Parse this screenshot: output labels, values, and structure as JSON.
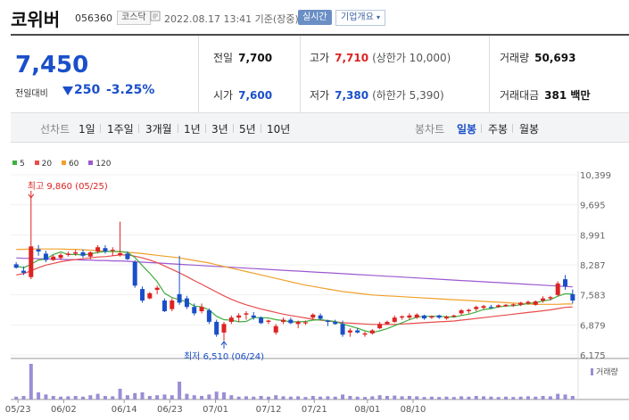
{
  "header": {
    "name": "코위버",
    "code": "056360",
    "market": "코스닥",
    "timestamp": "2022.08.17 13:41 기준(장중)",
    "realtime": "실시간",
    "overview": "기업개요"
  },
  "quote": {
    "price": "7,450",
    "change_label": "전일대비",
    "change": "250",
    "change_pct": "-3.25%",
    "prev_close_label": "전일",
    "prev_close": "7,700",
    "open_label": "시가",
    "open": "7,600",
    "high_label": "고가",
    "high": "7,710",
    "upper_limit": "(상한가 10,000)",
    "low_label": "저가",
    "low": "7,380",
    "lower_limit": "(하한가 5,390)",
    "volume_label": "거래량",
    "volume": "50,693",
    "amount_label": "거래대금",
    "amount": "381 백만"
  },
  "tabs": {
    "line_label": "선차트",
    "periods": [
      "1일",
      "1주일",
      "3개월",
      "1년",
      "3년",
      "5년",
      "10년"
    ],
    "candle_label": "봉차트",
    "candle_periods": [
      "일봉",
      "주봉",
      "월봉"
    ],
    "selected_candle": "일봉"
  },
  "colors": {
    "up": "#dd2222",
    "down": "#1a4fc9",
    "ma5": "#3fae3f",
    "ma20": "#e84c4c",
    "ma60": "#f0a02a",
    "ma120": "#9b59d0",
    "volume": "#9b8dd6"
  },
  "chart_data": {
    "type": "candlestick",
    "legend": [
      "5",
      "20",
      "60",
      "120"
    ],
    "y_ticks": [
      "10,399",
      "9,695",
      "8,991",
      "8,287",
      "7,583",
      "6,879",
      "6,175"
    ],
    "ylim": [
      6175,
      10399
    ],
    "x_ticks": [
      "05/23",
      "06/02",
      "06/14",
      "06/23",
      "07/01",
      "07/12",
      "07/21",
      "08/01",
      "08/10"
    ],
    "annotations": {
      "high": "최고 9,860 (05/25)",
      "low": "최저 6,510 (06/24)"
    },
    "volume_label": "거래량",
    "candles": [
      [
        8300,
        8350,
        8200,
        8220
      ],
      [
        8150,
        8250,
        8050,
        8100
      ],
      [
        8000,
        9860,
        7950,
        8720
      ],
      [
        8650,
        8750,
        8500,
        8600
      ],
      [
        8550,
        8620,
        8350,
        8400
      ],
      [
        8400,
        8520,
        8380,
        8480
      ],
      [
        8450,
        8560,
        8400,
        8520
      ],
      [
        8520,
        8600,
        8480,
        8550
      ],
      [
        8550,
        8640,
        8500,
        8580
      ],
      [
        8580,
        8650,
        8450,
        8500
      ],
      [
        8480,
        8600,
        8420,
        8580
      ],
      [
        8600,
        8750,
        8550,
        8700
      ],
      [
        8680,
        8750,
        8550,
        8600
      ],
      [
        8620,
        8700,
        8500,
        8640
      ],
      [
        8520,
        9300,
        8480,
        8560
      ],
      [
        8550,
        8600,
        8400,
        8420
      ],
      [
        8350,
        8400,
        7750,
        7800
      ],
      [
        7720,
        7780,
        7400,
        7450
      ],
      [
        7500,
        7650,
        7480,
        7620
      ],
      [
        7700,
        7800,
        7600,
        7750
      ],
      [
        7450,
        7500,
        7180,
        7200
      ],
      [
        7250,
        7500,
        7200,
        7450
      ],
      [
        7600,
        8500,
        7350,
        7400
      ],
      [
        7500,
        7560,
        7250,
        7300
      ],
      [
        7300,
        7380,
        7100,
        7150
      ],
      [
        7200,
        7380,
        7150,
        7300
      ],
      [
        7220,
        7260,
        6900,
        6950
      ],
      [
        6950,
        7000,
        6600,
        6650
      ],
      [
        6700,
        6950,
        6510,
        6900
      ],
      [
        6950,
        7100,
        6900,
        7050
      ],
      [
        7050,
        7150,
        6950,
        7100
      ],
      [
        7120,
        7200,
        7000,
        7150
      ],
      [
        7100,
        7180,
        7000,
        7050
      ],
      [
        7050,
        7080,
        6900,
        6920
      ],
      [
        6950,
        7000,
        6900,
        6980
      ],
      [
        6700,
        6900,
        6650,
        6850
      ],
      [
        6950,
        7050,
        6900,
        7000
      ],
      [
        7000,
        7050,
        6900,
        6920
      ],
      [
        6900,
        6980,
        6800,
        6950
      ],
      [
        6930,
        6980,
        6880,
        6940
      ],
      [
        7050,
        7150,
        7000,
        7120
      ],
      [
        7100,
        7150,
        7000,
        7020
      ],
      [
        6980,
        7000,
        6850,
        6950
      ],
      [
        6950,
        7000,
        6880,
        6900
      ],
      [
        6900,
        6980,
        6600,
        6650
      ],
      [
        6700,
        6800,
        6600,
        6750
      ],
      [
        6750,
        6800,
        6680,
        6700
      ],
      [
        6650,
        6720,
        6600,
        6680
      ],
      [
        6680,
        6780,
        6650,
        6750
      ],
      [
        6800,
        6950,
        6780,
        6900
      ],
      [
        6900,
        6980,
        6880,
        6950
      ],
      [
        6950,
        7100,
        6930,
        7050
      ],
      [
        7050,
        7100,
        7000,
        7080
      ],
      [
        7050,
        7150,
        7000,
        7100
      ],
      [
        7050,
        7150,
        7020,
        7120
      ],
      [
        7100,
        7120,
        7000,
        7030
      ],
      [
        7050,
        7100,
        7020,
        7080
      ],
      [
        7100,
        7120,
        7020,
        7050
      ],
      [
        7030,
        7100,
        7000,
        7070
      ],
      [
        7080,
        7120,
        7050,
        7100
      ],
      [
        7150,
        7250,
        7100,
        7220
      ],
      [
        7200,
        7260,
        7150,
        7230
      ],
      [
        7250,
        7330,
        7200,
        7300
      ],
      [
        7280,
        7350,
        7250,
        7320
      ],
      [
        7300,
        7350,
        7260,
        7280
      ],
      [
        7300,
        7360,
        7280,
        7340
      ],
      [
        7320,
        7370,
        7300,
        7350
      ],
      [
        7340,
        7380,
        7300,
        7360
      ],
      [
        7350,
        7420,
        7320,
        7400
      ],
      [
        7380,
        7450,
        7350,
        7420
      ],
      [
        7350,
        7450,
        7330,
        7430
      ],
      [
        7450,
        7550,
        7400,
        7500
      ],
      [
        7500,
        7560,
        7450,
        7530
      ],
      [
        7580,
        7900,
        7550,
        7850
      ],
      [
        7950,
        8050,
        7700,
        7780
      ],
      [
        7600,
        7710,
        7380,
        7450
      ]
    ],
    "ma5": [
      8260,
      8220,
      8300,
      8400,
      8420,
      8530,
      8590,
      8530,
      8530,
      8520,
      8540,
      8580,
      8600,
      8600,
      8600,
      8580,
      8460,
      8270,
      8090,
      7890,
      7620,
      7520,
      7470,
      7420,
      7320,
      7300,
      7230,
      7080,
      7000,
      6990,
      6950,
      6960,
      7050,
      7050,
      7040,
      7000,
      6980,
      6950,
      6950,
      6960,
      6990,
      7000,
      6980,
      6960,
      6900,
      6850,
      6800,
      6740,
      6700,
      6740,
      6790,
      6860,
      6930,
      7000,
      7060,
      7080,
      7080,
      7080,
      7070,
      7060,
      7100,
      7130,
      7180,
      7240,
      7260,
      7300,
      7320,
      7330,
      7350,
      7380,
      7400,
      7440,
      7470,
      7550,
      7610,
      7600
    ],
    "ma20": [
      8050,
      8080,
      8150,
      8220,
      8280,
      8320,
      8360,
      8390,
      8410,
      8430,
      8450,
      8470,
      8480,
      8500,
      8520,
      8520,
      8490,
      8450,
      8400,
      8340,
      8260,
      8180,
      8100,
      8010,
      7920,
      7830,
      7740,
      7650,
      7560,
      7480,
      7410,
      7350,
      7300,
      7250,
      7210,
      7170,
      7130,
      7100,
      7070,
      7040,
      7010,
      6990,
      6970,
      6950,
      6930,
      6920,
      6910,
      6900,
      6890,
      6890,
      6890,
      6890,
      6900,
      6910,
      6920,
      6930,
      6940,
      6950,
      6960,
      6970,
      6990,
      7010,
      7030,
      7050,
      7070,
      7090,
      7110,
      7130,
      7150,
      7170,
      7190,
      7210,
      7230,
      7260,
      7290,
      7300
    ],
    "ma60": [
      8650,
      8650,
      8660,
      8660,
      8660,
      8660,
      8660,
      8650,
      8650,
      8640,
      8630,
      8620,
      8610,
      8600,
      8590,
      8580,
      8570,
      8550,
      8530,
      8510,
      8490,
      8470,
      8450,
      8420,
      8390,
      8360,
      8330,
      8290,
      8250,
      8210,
      8170,
      8130,
      8090,
      8050,
      8010,
      7970,
      7930,
      7890,
      7850,
      7810,
      7780,
      7750,
      7720,
      7690,
      7660,
      7640,
      7620,
      7600,
      7580,
      7570,
      7560,
      7550,
      7540,
      7530,
      7520,
      7510,
      7500,
      7490,
      7480,
      7470,
      7460,
      7450,
      7440,
      7430,
      7420,
      7410,
      7400,
      7390,
      7380,
      7370,
      7360,
      7360,
      7360,
      7360,
      7370,
      7370
    ],
    "ma120": [
      8450,
      8440,
      8440,
      8430,
      8430,
      8420,
      8420,
      8410,
      8410,
      8400,
      8400,
      8390,
      8390,
      8380,
      8380,
      8370,
      8360,
      8350,
      8340,
      8330,
      8320,
      8310,
      8300,
      8290,
      8280,
      8270,
      8260,
      8250,
      8240,
      8230,
      8220,
      8210,
      8200,
      8190,
      8180,
      8170,
      8160,
      8150,
      8140,
      8130,
      8120,
      8110,
      8100,
      8090,
      8080,
      8070,
      8060,
      8050,
      8040,
      8030,
      8020,
      8010,
      8000,
      7990,
      7980,
      7970,
      7960,
      7950,
      7940,
      7930,
      7920,
      7910,
      7900,
      7890,
      7880,
      7870,
      7860,
      7850,
      7840,
      7830,
      7820,
      7810,
      7800,
      7790,
      7780,
      7770
    ],
    "volume": [
      8,
      10,
      100,
      20,
      14,
      10,
      8,
      9,
      10,
      8,
      12,
      16,
      10,
      9,
      30,
      12,
      18,
      20,
      10,
      12,
      14,
      12,
      50,
      16,
      12,
      10,
      14,
      22,
      20,
      12,
      8,
      9,
      8,
      10,
      8,
      12,
      9,
      8,
      9,
      7,
      10,
      8,
      9,
      8,
      14,
      10,
      8,
      7,
      9,
      12,
      10,
      11,
      9,
      10,
      9,
      7,
      8,
      7,
      8,
      7,
      9,
      8,
      10,
      9,
      8,
      7,
      8,
      7,
      8,
      9,
      8,
      10,
      9,
      16,
      14,
      10
    ]
  }
}
